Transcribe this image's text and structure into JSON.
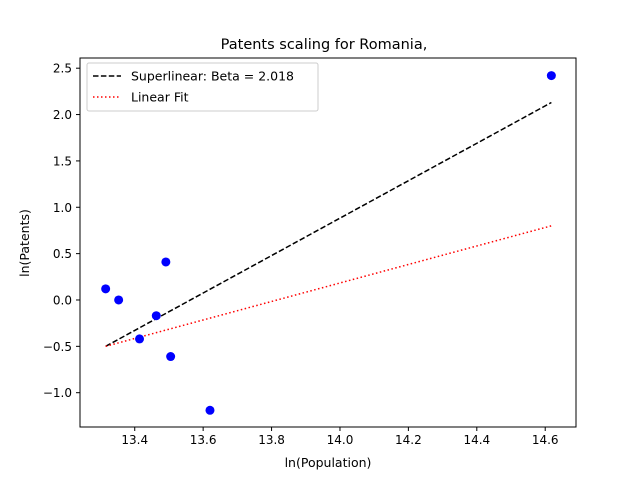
{
  "chart_data": {
    "type": "scatter",
    "title": "Patents scaling for Romania,",
    "xlabel": "ln(Population)",
    "ylabel": "ln(Patents)",
    "xlim": [
      13.24,
      14.69
    ],
    "ylim": [
      -1.37,
      2.61
    ],
    "x_ticks": [
      13.4,
      13.6,
      13.8,
      14.0,
      14.2,
      14.4,
      14.6
    ],
    "x_tick_labels": [
      "13.4",
      "13.6",
      "13.8",
      "14.0",
      "14.2",
      "14.4",
      "14.6"
    ],
    "y_ticks": [
      -1.0,
      -0.5,
      0.0,
      0.5,
      1.0,
      1.5,
      2.0,
      2.5
    ],
    "y_tick_labels": [
      "−1.0",
      "−0.5",
      "0.0",
      "0.5",
      "1.0",
      "1.5",
      "2.0",
      "2.5"
    ],
    "grid": false,
    "legend_position": "top-left",
    "points": {
      "color": "#0000ff",
      "x": [
        13.315,
        13.353,
        13.414,
        13.463,
        13.491,
        13.505,
        13.62,
        14.618
      ],
      "y": [
        0.12,
        0.0,
        -0.42,
        -0.17,
        0.41,
        -0.61,
        -1.19,
        2.42
      ]
    },
    "series": [
      {
        "name": "Superlinear: Beta = 2.018",
        "style": "dashed",
        "color": "#000000",
        "x": [
          13.315,
          14.618
        ],
        "y": [
          -0.5,
          2.13
        ]
      },
      {
        "name": "Linear Fit",
        "style": "dotted",
        "color": "#ff0000",
        "x": [
          13.315,
          14.618
        ],
        "y": [
          -0.5,
          0.8
        ]
      }
    ]
  }
}
